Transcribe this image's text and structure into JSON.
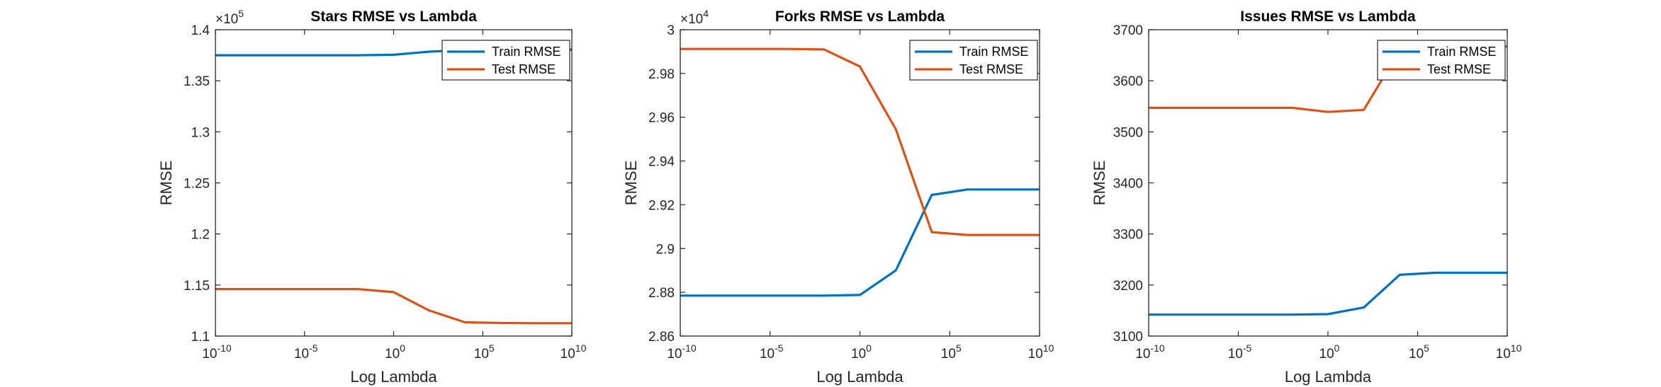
{
  "figure": {
    "background": "#ffffff",
    "colors": {
      "train": "#0072BD",
      "test": "#D95319",
      "axis": "#262626"
    }
  },
  "chart_data": [
    {
      "type": "line",
      "title": "Stars RMSE vs Lambda",
      "xlabel": "Log Lambda",
      "ylabel": "RMSE",
      "xscale": "log",
      "xlim": [
        1e-10,
        10000000000.0
      ],
      "ylim": [
        110000,
        140000
      ],
      "y_multiplier_label": "×10^5",
      "y_ticks": [
        "1.1",
        "1.15",
        "1.2",
        "1.25",
        "1.3",
        "1.35",
        "1.4"
      ],
      "y_tick_values": [
        110000,
        115000,
        120000,
        125000,
        130000,
        135000,
        140000
      ],
      "legend_position": "top-right",
      "grid": false,
      "x": [
        1e-10,
        1e-08,
        1e-06,
        0.0001,
        0.01,
        1,
        100,
        10000,
        1000000,
        100000000,
        10000000000
      ],
      "series": [
        {
          "name": "Train RMSE",
          "color": "#0072BD",
          "values": [
            137500,
            137500,
            137500,
            137500,
            137500,
            137550,
            137850,
            138000,
            138050,
            138050,
            138050
          ]
        },
        {
          "name": "Test RMSE",
          "color": "#D95319",
          "values": [
            114600,
            114600,
            114600,
            114600,
            114600,
            114300,
            112500,
            111350,
            111280,
            111260,
            111260
          ]
        }
      ]
    },
    {
      "type": "line",
      "title": "Forks RMSE vs Lambda",
      "xlabel": "Log Lambda",
      "ylabel": "RMSE",
      "xscale": "log",
      "xlim": [
        1e-10,
        10000000000.0
      ],
      "ylim": [
        28600,
        30000
      ],
      "y_multiplier_label": "×10^4",
      "y_ticks": [
        "2.86",
        "2.88",
        "2.9",
        "2.92",
        "2.94",
        "2.96",
        "2.98",
        "3"
      ],
      "y_tick_values": [
        28600,
        28800,
        29000,
        29200,
        29400,
        29600,
        29800,
        30000
      ],
      "legend_position": "top-right",
      "grid": false,
      "x": [
        1e-10,
        1e-08,
        1e-06,
        0.0001,
        0.01,
        1,
        100,
        10000,
        1000000,
        100000000,
        10000000000
      ],
      "series": [
        {
          "name": "Train RMSE",
          "color": "#0072BD",
          "values": [
            28785,
            28785,
            28785,
            28785,
            28785,
            28788,
            28900,
            29245,
            29270,
            29270,
            29270
          ]
        },
        {
          "name": "Test RMSE",
          "color": "#D95319",
          "values": [
            29912,
            29912,
            29912,
            29912,
            29910,
            29832,
            29545,
            29075,
            29062,
            29062,
            29062
          ]
        }
      ]
    },
    {
      "type": "line",
      "title": "Issues RMSE vs Lambda",
      "xlabel": "Log Lambda",
      "ylabel": "RMSE",
      "xscale": "log",
      "xlim": [
        1e-10,
        10000000000.0
      ],
      "ylim": [
        3100,
        3700
      ],
      "y_ticks": [
        "3100",
        "3200",
        "3300",
        "3400",
        "3500",
        "3600",
        "3700"
      ],
      "y_tick_values": [
        3100,
        3200,
        3300,
        3400,
        3500,
        3600,
        3700
      ],
      "legend_position": "top-right",
      "grid": false,
      "x": [
        1e-10,
        1e-08,
        1e-06,
        0.0001,
        0.01,
        1,
        100,
        10000,
        1000000,
        100000000,
        10000000000
      ],
      "series": [
        {
          "name": "Train RMSE",
          "color": "#0072BD",
          "values": [
            3142,
            3142,
            3142,
            3142,
            3142,
            3143,
            3156,
            3220,
            3224,
            3224,
            3224
          ]
        },
        {
          "name": "Test RMSE",
          "color": "#D95319",
          "values": [
            3547,
            3547,
            3547,
            3547,
            3547,
            3539,
            3543,
            3660,
            3667,
            3667,
            3667
          ]
        }
      ]
    }
  ]
}
